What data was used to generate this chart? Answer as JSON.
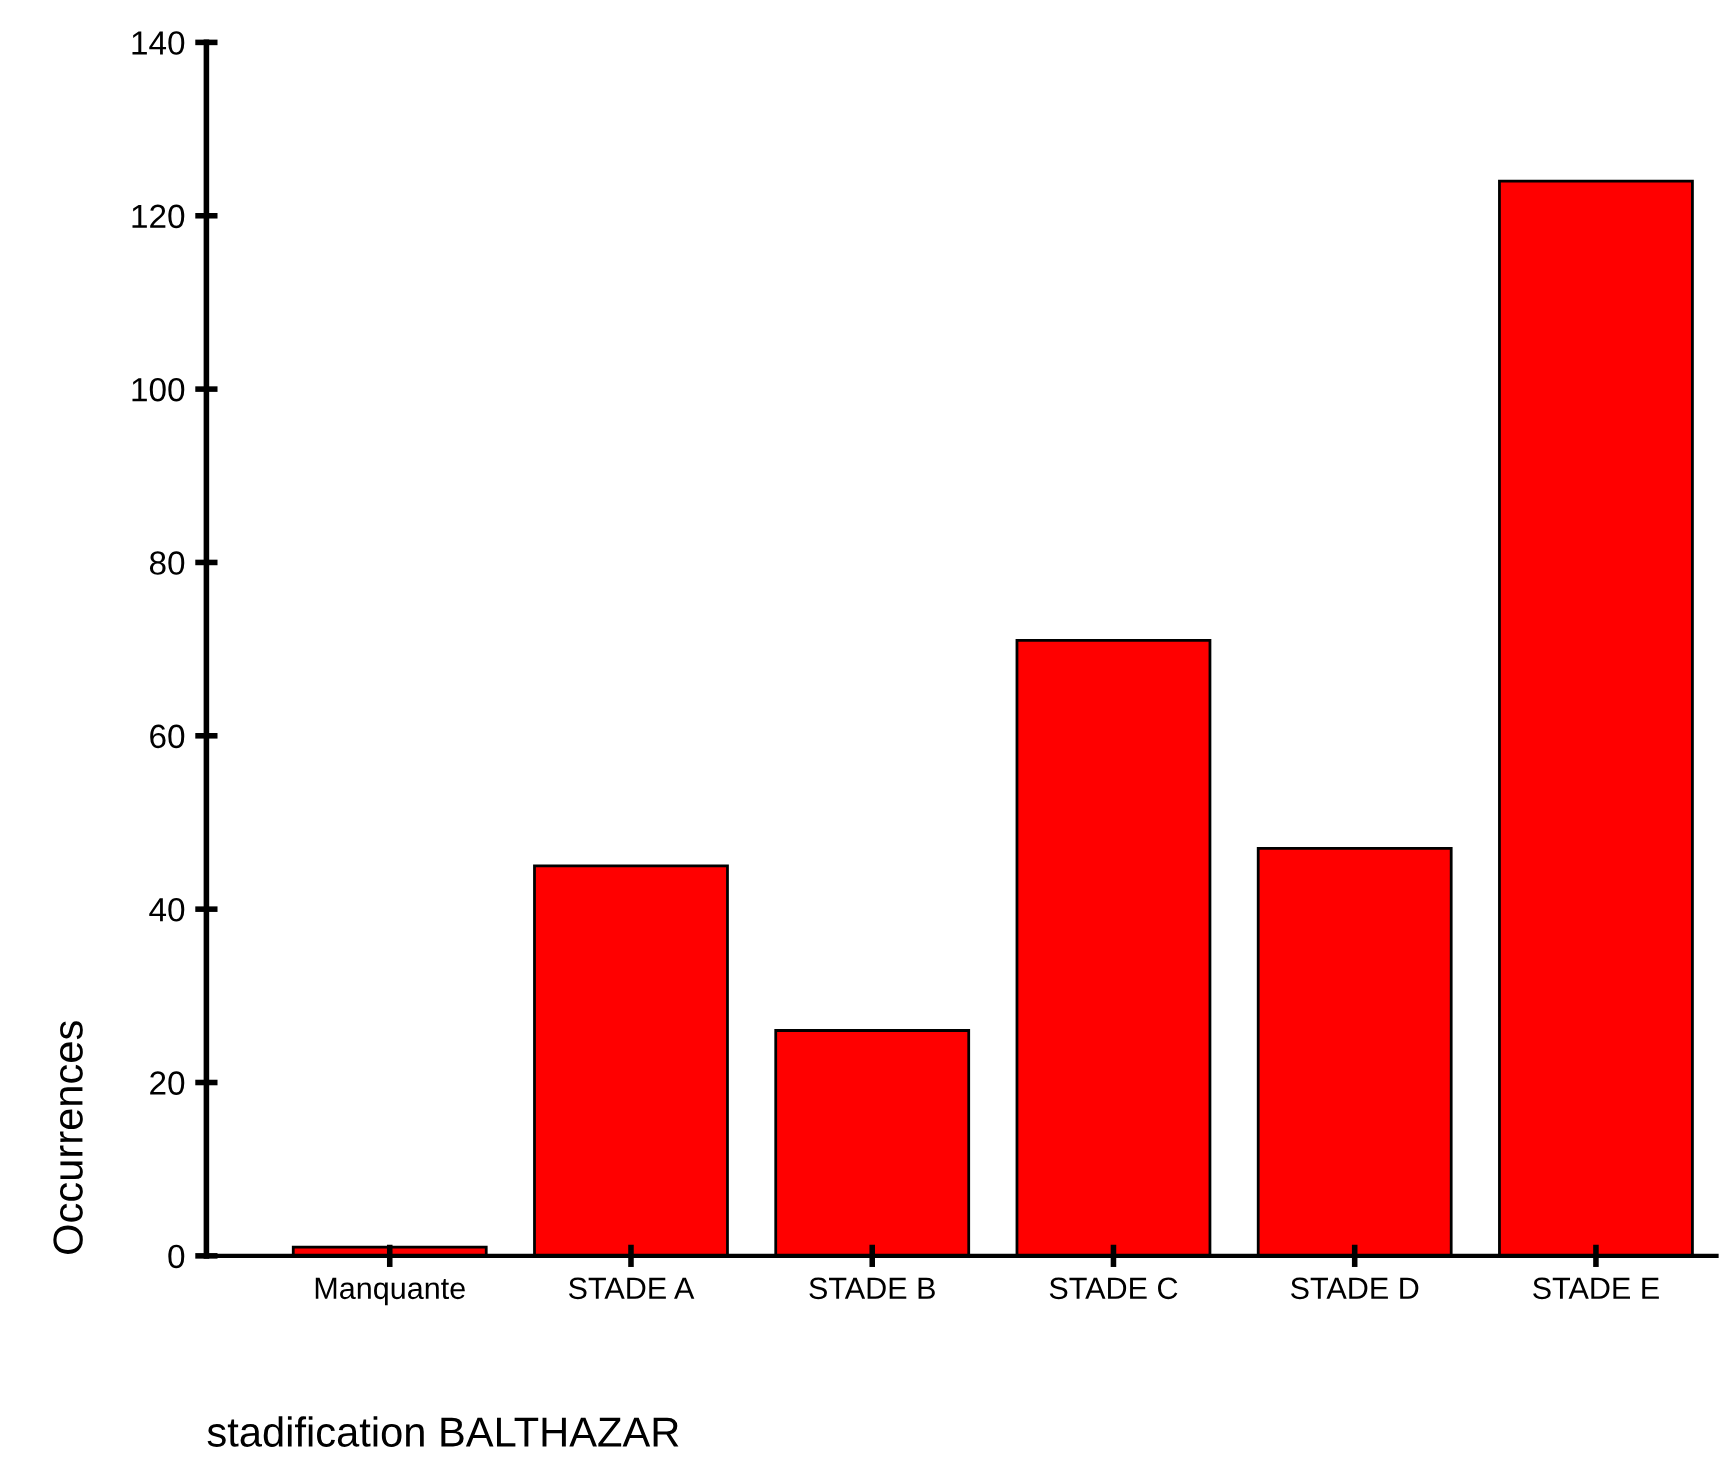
{
  "chart_data": {
    "type": "bar",
    "xlabel": "stadification BALTHAZAR",
    "ylabel": "Occurrences",
    "categories": [
      "Manquante",
      "STADE A",
      "STADE B",
      "STADE C",
      "STADE D",
      "STADE E"
    ],
    "values": [
      1,
      45,
      26,
      71,
      47,
      124
    ],
    "color": "#ff0000",
    "ylim": [
      0,
      140
    ],
    "yticks": [
      0,
      20,
      40,
      60,
      80,
      100,
      120,
      140
    ],
    "grid": false,
    "legend": false
  }
}
